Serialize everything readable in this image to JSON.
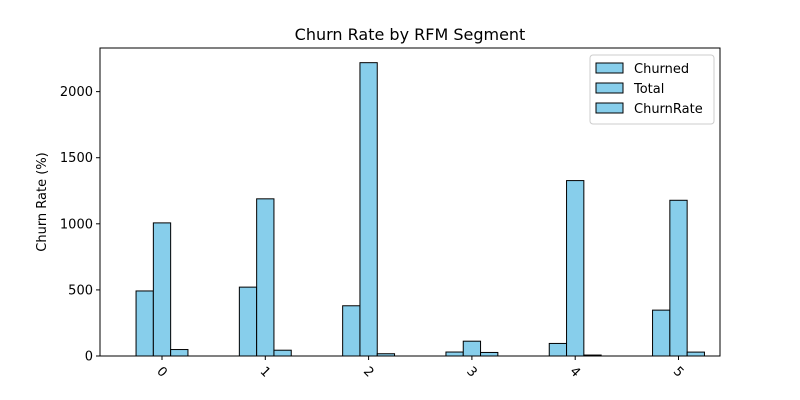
{
  "chart_data": {
    "type": "bar",
    "title": "Churn Rate by RFM Segment",
    "xlabel": "",
    "ylabel": "Churn Rate (%)",
    "categories": [
      "0",
      "1",
      "2",
      "3",
      "4",
      "5"
    ],
    "series": [
      {
        "name": "Churned",
        "values": [
          492,
          521,
          380,
          30,
          95,
          347
        ]
      },
      {
        "name": "Total",
        "values": [
          1007,
          1189,
          2219,
          112,
          1327,
          1178
        ]
      },
      {
        "name": "ChurnRate",
        "values": [
          48.9,
          43.8,
          17.1,
          26.8,
          7.2,
          29.5
        ]
      }
    ],
    "ylim": [
      0,
      2330
    ],
    "yticks": [
      0,
      500,
      1000,
      1500,
      2000
    ],
    "bar_color": "#87ceeb",
    "edge_color": "#000000",
    "legend_position": "upper-right",
    "grid": false,
    "xtick_rotation": 45
  }
}
